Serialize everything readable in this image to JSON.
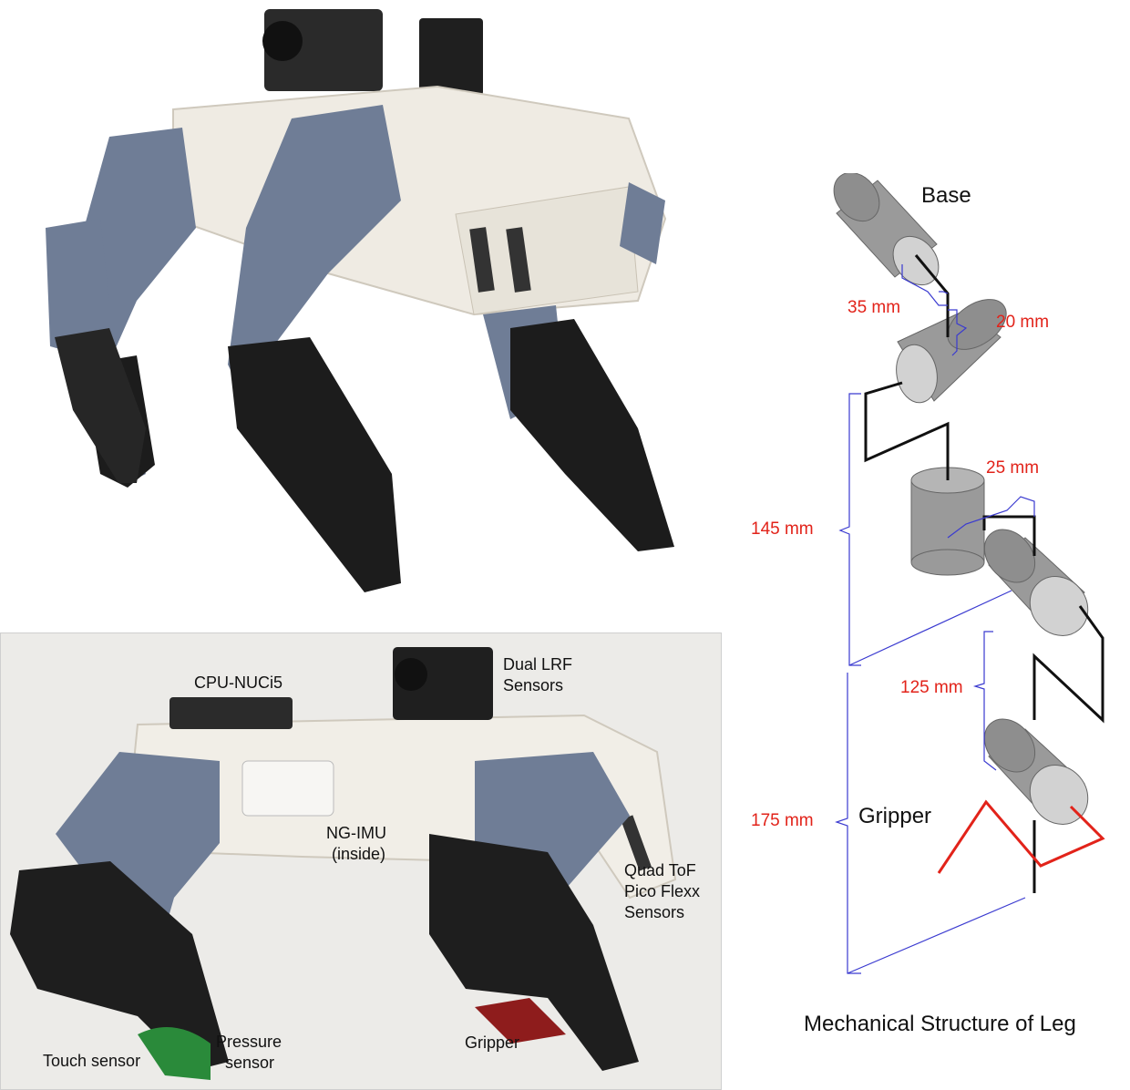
{
  "photo_labels": {
    "cpu": "CPU-NUCi5",
    "lrf_line1": "Dual LRF",
    "lrf_line2": "Sensors",
    "imu_line1": "NG-IMU",
    "imu_line2": "(inside)",
    "tof_line1": "Quad ToF",
    "tof_line2": "Pico Flexx",
    "tof_line3": "Sensors",
    "touch": "Touch sensor",
    "pressure_line1": "Pressure",
    "pressure_line2": "sensor",
    "gripper": "Gripper"
  },
  "diagram": {
    "title": "Mechanical Structure of Leg",
    "base_label": "Base",
    "gripper_label": "Gripper",
    "dims": {
      "d35": "35 mm",
      "d20": "20 mm",
      "d25": "25 mm",
      "d145": "145 mm",
      "d125": "125 mm",
      "d175": "175 mm"
    }
  },
  "colors": {
    "dimension_text": "#e2231a",
    "dimension_line": "#3a3ad0",
    "link": "#111111",
    "gripper_link": "#e2231a",
    "cylinder_dark": "#9a9a9a",
    "cylinder_light": "#d2d2d2",
    "robot_body": "#eeeae2",
    "robot_limb": "#6f7d96",
    "robot_foot": "#1c1c1c"
  }
}
